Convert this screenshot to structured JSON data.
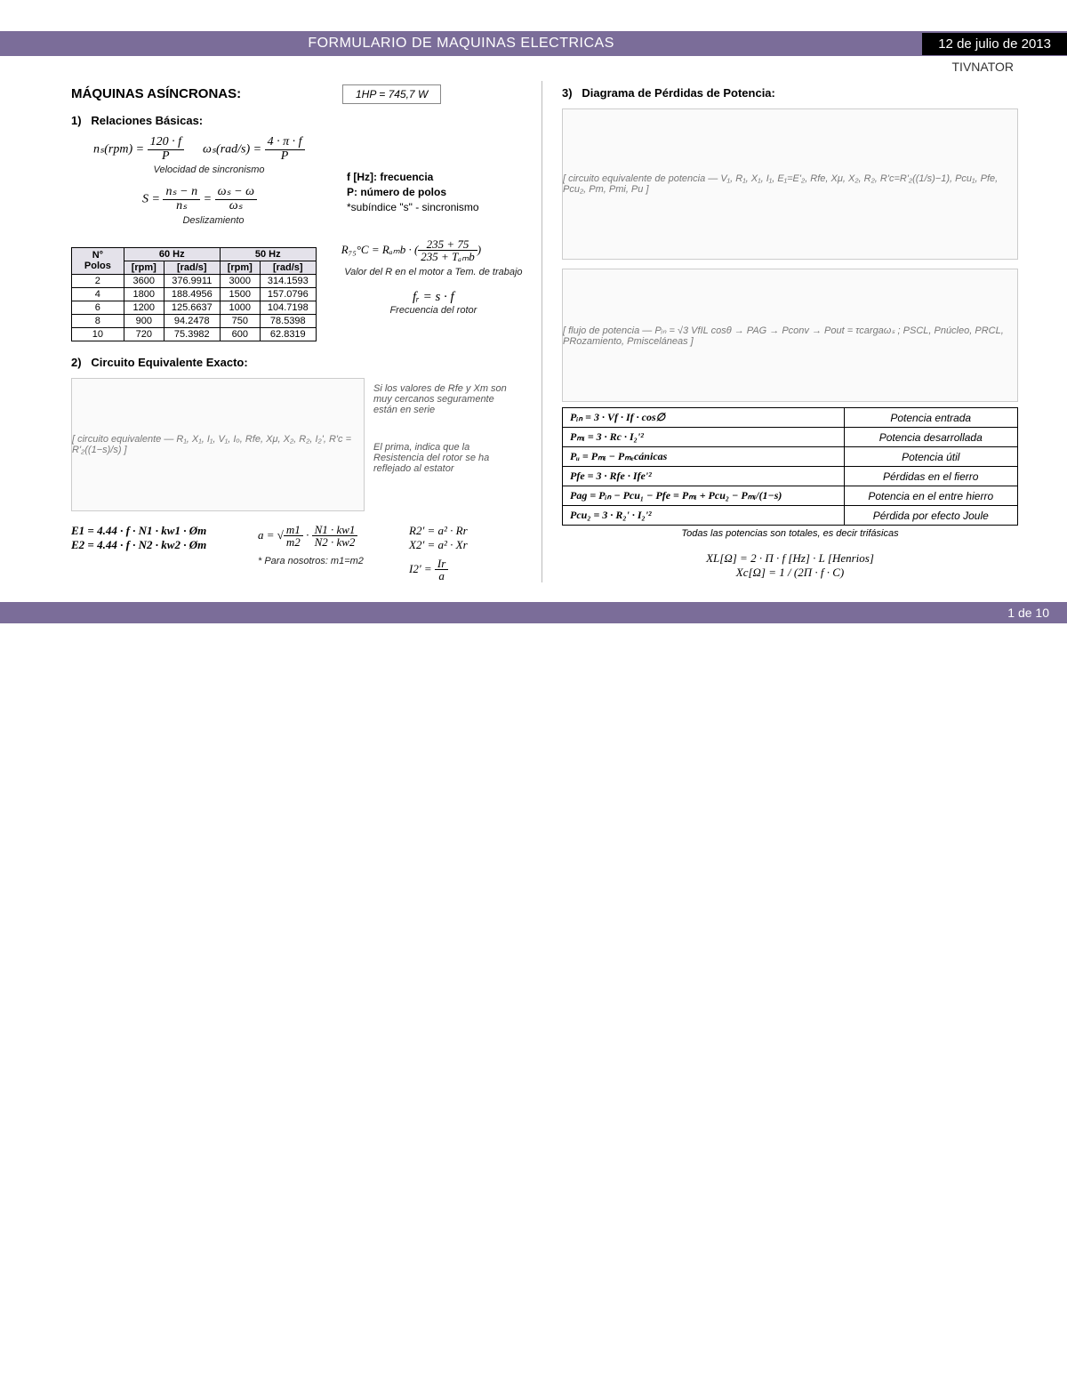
{
  "banner": {
    "title": "FORMULARIO DE MAQUINAS ELECTRICAS",
    "date": "12 de julio de 2013"
  },
  "brand": "TIVNATOR",
  "left": {
    "title": "MÁQUINAS ASÍNCRONAS:",
    "hp": "1HP = 745,7 W",
    "s1": {
      "num": "1)",
      "name": "Relaciones Básicas:"
    },
    "eq_ns": "nₛ(rpm) =",
    "ns_n": "120 · f",
    "ns_d": "P",
    "eq_ws": "ωₛ(rad/s) =",
    "ws_n": "4 · π · f",
    "ws_d": "P",
    "vs_caption": "Velocidad de sincronismo",
    "eq_S": "S =",
    "S1_n": "nₛ − n",
    "S1_d": "nₛ",
    "S2_n": "ωₛ − ω",
    "S2_d": "ωₛ",
    "slip_caption": "Deslizamiento",
    "defs": {
      "f": "f [Hz]: frecuencia",
      "p": "P: número de polos",
      "s": "*subíndice \"s\" - sincronismo"
    },
    "tbl": {
      "hdr_poles": "N° Polos",
      "hdr_60": "60 Hz",
      "hdr_50": "50 Hz",
      "sub_rpm": "[rpm]",
      "sub_rad": "[rad/s]",
      "rows": [
        [
          "2",
          "3600",
          "376.9911",
          "3000",
          "314.1593"
        ],
        [
          "4",
          "1800",
          "188.4956",
          "1500",
          "157.0796"
        ],
        [
          "6",
          "1200",
          "125.6637",
          "1000",
          "104.7198"
        ],
        [
          "8",
          "900",
          "94.2478",
          "750",
          "78.5398"
        ],
        [
          "10",
          "720",
          "75.3982",
          "600",
          "62.8319"
        ]
      ]
    },
    "r75": "R₇₅°C = Rₐₘb ·",
    "r75_n": "235 + 75",
    "r75_d": "235 + Tₐₘb",
    "r75_caption": "Valor del R en el motor a Tem. de trabajo",
    "fr": "fᵣ = s · f",
    "fr_caption": "Frecuencia del rotor",
    "s2": {
      "num": "2)",
      "name": "Circuito Equivalente Exacto:"
    },
    "ckt_note1": "Si los valores de Rfe y Xm son muy cercanos seguramente están en serie",
    "ckt_note2": "El prima, indica que la Resistencia del rotor se ha reflejado al estator",
    "ckt_placeholder": "[ circuito equivalente — R₁, X₁, I₁, V₁, Iₒ, Rfe, Xμ, X₂, R₂, I₂', R'c = R'₂((1−s)/s) ]",
    "E1": "E1 = 4.44 · f · N1 · kw1 · Øm",
    "E2": "E2 = 4.44 · f · N2 · kw2 · Øm",
    "a_eq": "a =",
    "a_n": "m1",
    "a_d": "m2",
    "a2_n": "N1 · kw1",
    "a2_d": "N2 · kw2",
    "a_note": "* Para nosotros:  m1=m2",
    "R2p": "R2' = a² · Rr",
    "X2p": "X2' = a² · Xr",
    "I2p": "I2' =",
    "I2_n": "Ir",
    "I2_d": "a"
  },
  "right": {
    "s3": {
      "num": "3)",
      "name": "Diagrama de Pérdidas de Potencia:"
    },
    "diag1_placeholder": "[ circuito equivalente de potencia — V₁, R₁, X₁, I₁, E₁=E'₂, Rfe, Xμ, X₂, R₂, R'c=R'₂((1/s)−1), Pcu₁, Pfe, Pcu₂, Pm, Pmi, Pu ]",
    "diag2_placeholder": "[ flujo de potencia — Pᵢₙ = √3 VfIL cosθ → PAG → Pconv → Pout = τcargaωₛ ; PSCL, Pnúcleo, PRCL, PRozamiento, Pmisceláneas ]",
    "power_rows": [
      [
        "Pᵢₙ = 3 · Vf · If · cos∅",
        "Potencia entrada"
      ],
      [
        "Pₘᵢ = 3 · Rc · I₂'²",
        "Potencia desarrollada"
      ],
      [
        "Pᵤ = Pₘᵢ − Pₘₑcánicas",
        "Potencia útil"
      ],
      [
        "Pfe = 3 · Rfe · Ife'²",
        "Pérdidas en el fierro"
      ],
      [
        "Pag = Pᵢₙ − Pcu₁ − Pfe = Pₘᵢ + Pcu₂ − Pₘᵢ/(1−s)",
        "Potencia en el entre hierro"
      ],
      [
        "Pcu₂ = 3 · R₂' · I₂'²",
        "Pérdida por efecto Joule"
      ]
    ],
    "foot": "Todas las potencias son totales, es decir trifásicas",
    "XL": "XL[Ω] = 2 · Π · f [Hz] · L [Henrios]",
    "XC": "Xc[Ω] = 1 / (2Π · f · C)"
  },
  "footer": "1 de 10"
}
